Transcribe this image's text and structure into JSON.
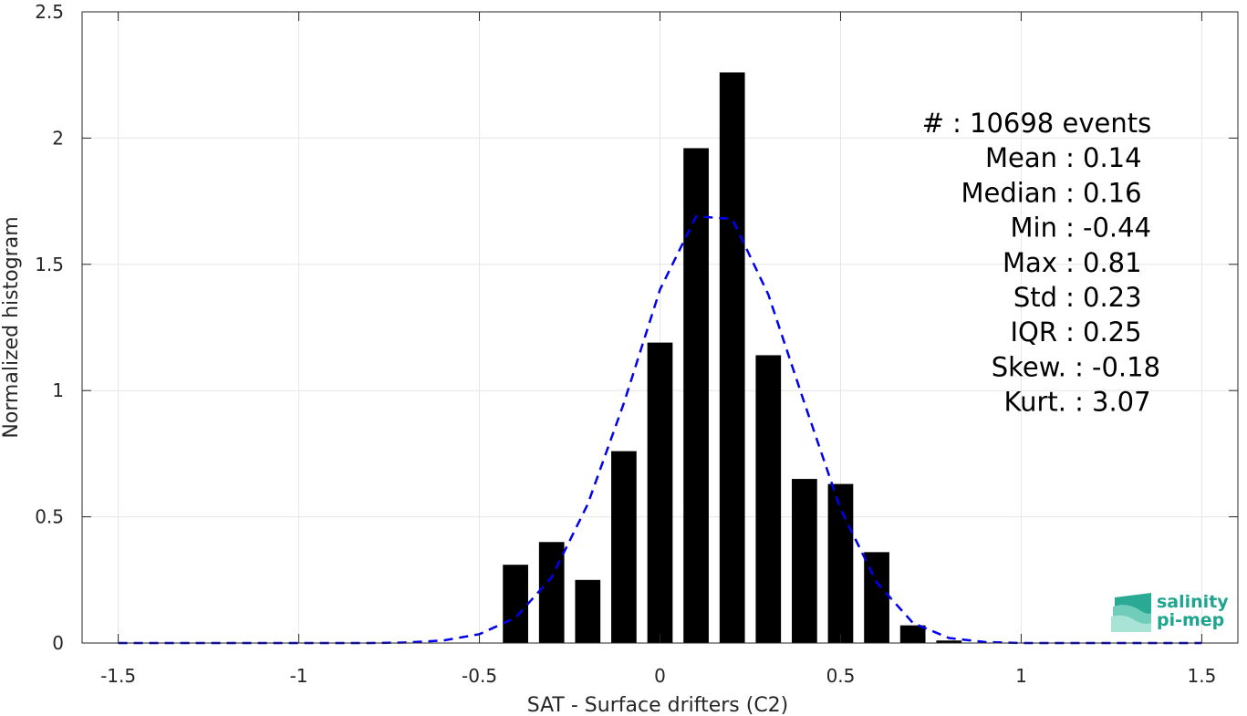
{
  "chart_data": {
    "type": "bar",
    "xlabel": "SAT - Surface drifters (C2)",
    "ylabel": "Normalized histogram",
    "xlim": [
      -1.6,
      1.6
    ],
    "ylim": [
      0,
      2.5
    ],
    "xticks": [
      -1.5,
      -1,
      -0.5,
      0,
      0.5,
      1,
      1.5
    ],
    "xtick_labels": [
      "-1.5",
      "-1",
      "-0.5",
      "0",
      "0.5",
      "1",
      "1.5"
    ],
    "yticks": [
      0,
      0.5,
      1,
      1.5,
      2,
      2.5
    ],
    "ytick_labels": [
      "0",
      "0.5",
      "1",
      "1.5",
      "2",
      "2.5"
    ],
    "grid": true,
    "bar_color": "#000000",
    "fit_color": "#0000ee",
    "series": [
      {
        "kind": "histogram",
        "bar_width": 0.07,
        "x": [
          -0.4,
          -0.3,
          -0.2,
          -0.1,
          0.0,
          0.1,
          0.2,
          0.3,
          0.4,
          0.5,
          0.6,
          0.7,
          0.8
        ],
        "values": [
          0.31,
          0.4,
          0.25,
          0.76,
          1.19,
          1.96,
          2.26,
          1.14,
          0.65,
          0.63,
          0.36,
          0.07,
          0.01
        ]
      },
      {
        "kind": "dashed-fit",
        "x": [
          -1.5,
          -1.0,
          -0.8,
          -0.7,
          -0.6,
          -0.5,
          -0.4,
          -0.3,
          -0.2,
          -0.1,
          0.0,
          0.1,
          0.2,
          0.3,
          0.4,
          0.5,
          0.6,
          0.7,
          0.8,
          0.9,
          1.0,
          1.5
        ],
        "values": [
          0.0,
          0.0,
          0.0,
          0.002,
          0.01,
          0.035,
          0.1,
          0.26,
          0.55,
          0.95,
          1.4,
          1.69,
          1.68,
          1.38,
          0.95,
          0.53,
          0.24,
          0.08,
          0.02,
          0.004,
          0.0,
          0.0
        ]
      }
    ],
    "annotations": [
      {
        "label": "#",
        "sep": ":",
        "value": "10698 events"
      },
      {
        "label": "Mean",
        "sep": ":",
        "value": "0.14"
      },
      {
        "label": "Median",
        "sep": ":",
        "value": "0.16"
      },
      {
        "label": "Min",
        "sep": ":",
        "value": "-0.44"
      },
      {
        "label": "Max",
        "sep": ":",
        "value": "0.81"
      },
      {
        "label": "Std",
        "sep": ":",
        "value": "0.23"
      },
      {
        "label": "IQR",
        "sep": ":",
        "value": "0.25"
      },
      {
        "label": "Skew.",
        "sep": ":",
        "value": "-0.18"
      },
      {
        "label": "Kurt.",
        "sep": ":",
        "value": "3.07"
      }
    ]
  },
  "logo": {
    "line1": "salinity",
    "line2": "pi-mep",
    "color": "#1fa58f"
  }
}
